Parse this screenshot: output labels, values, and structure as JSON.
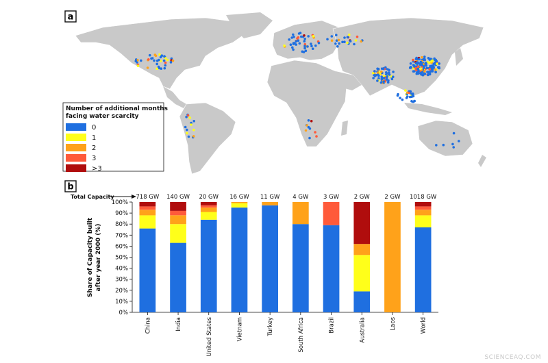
{
  "panel_a": {
    "tag": "a",
    "legend": {
      "title_line1": "Number of additional months",
      "title_line2": "facing water scarcity",
      "items": [
        {
          "label": "0",
          "color": "#1f6fe0"
        },
        {
          "label": "1",
          "color": "#ffff1a"
        },
        {
          "label": "2",
          "color": "#ffa21a"
        },
        {
          "label": "3",
          "color": "#ff5a3a"
        },
        {
          "label": ">3",
          "color": "#b00d0d"
        }
      ]
    }
  },
  "panel_b": {
    "tag": "b",
    "total_capacity_label": "Total Capacity",
    "ylabel_line1": "Share of Capacity built",
    "ylabel_line2": "after year 2000 (%)"
  },
  "chart_data": {
    "type": "bar",
    "stacked": true,
    "categories": [
      "China",
      "India",
      "United States",
      "Vietnam",
      "Turkey",
      "South Africa",
      "Brazil",
      "Australia",
      "Laos",
      "World"
    ],
    "capacity_labels": [
      "718 GW",
      "140 GW",
      "20 GW",
      "16 GW",
      "11 GW",
      "4 GW",
      "3 GW",
      "2 GW",
      "2 GW",
      "1018 GW"
    ],
    "ylabel": "Share of Capacity built after year 2000 (%)",
    "ylim": [
      0,
      100
    ],
    "yticks": [
      "0%",
      "10%",
      "20%",
      "30%",
      "40%",
      "50%",
      "60%",
      "70%",
      "80%",
      "90%",
      "100%"
    ],
    "series": [
      {
        "name": "0",
        "color": "#1f6fe0",
        "values": [
          76,
          63,
          84,
          95,
          97,
          80,
          79,
          19,
          0,
          77
        ]
      },
      {
        "name": "1",
        "color": "#ffff1a",
        "values": [
          12,
          17,
          7,
          4,
          0,
          0,
          0,
          33,
          0,
          11
        ]
      },
      {
        "name": "2",
        "color": "#ffa21a",
        "values": [
          5,
          8,
          4,
          1,
          3,
          20,
          0,
          10,
          100,
          5
        ]
      },
      {
        "name": "3",
        "color": "#ff5a3a",
        "values": [
          3,
          4,
          2,
          0,
          0,
          0,
          21,
          0,
          0,
          3
        ]
      },
      {
        "name": ">3",
        "color": "#b00d0d",
        "values": [
          4,
          8,
          3,
          0,
          0,
          0,
          0,
          38,
          0,
          4
        ]
      }
    ]
  },
  "watermark": "SCIENCEAQ.COM"
}
